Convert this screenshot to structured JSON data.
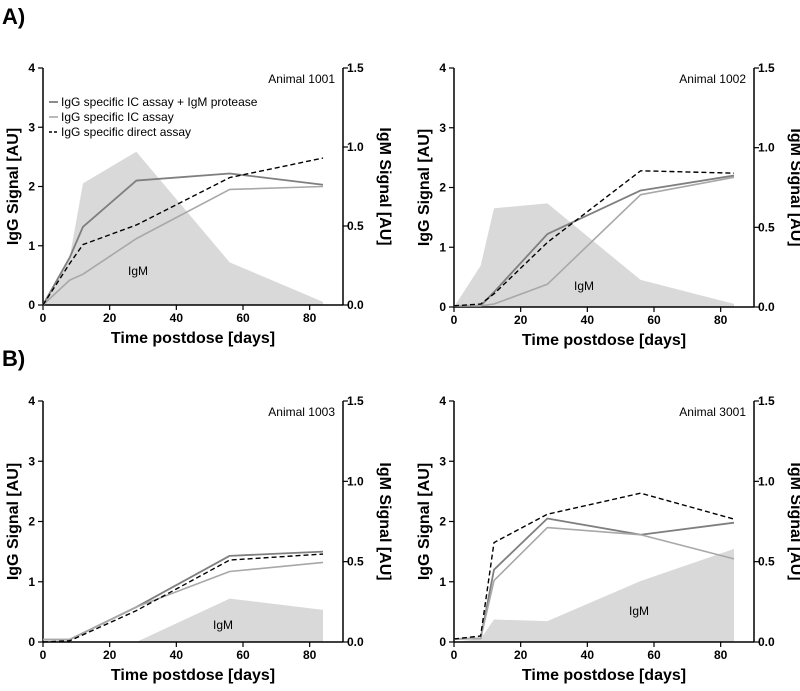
{
  "panel_labels": [
    "A)",
    "B)"
  ],
  "colors": {
    "ic_protease": "#7f7f7f",
    "ic_assay": "#a8a8a8",
    "direct": "#000000",
    "igm_fill": "#d9d9d9"
  },
  "legend": [
    {
      "label": "IgG specific IC assay + IgM protease",
      "style": "ic_protease"
    },
    {
      "label": "IgG specific IC assay",
      "style": "ic_assay"
    },
    {
      "label": "IgG specific direct assay",
      "style": "direct"
    }
  ],
  "chart_data": [
    {
      "type": "line",
      "title": "Animal 1001",
      "xlabel": "Time postdose [days]",
      "ylabel": "IgG Signal [AU]",
      "y2label": "IgM Signal [AU]",
      "xlim": [
        0,
        90
      ],
      "ylim": [
        0,
        4
      ],
      "y2lim": [
        0,
        1.5
      ],
      "xticks": [
        "0",
        "20",
        "40",
        "60",
        "80"
      ],
      "yticks": [
        "0",
        "1",
        "2",
        "3",
        "4"
      ],
      "y2ticks": [
        "0.0",
        "0.5",
        "1.0",
        "1.5"
      ],
      "igm_label": "IgM",
      "area": {
        "name": "IgM",
        "x": [
          0,
          8,
          12,
          28,
          56,
          84
        ],
        "y": [
          0.0,
          0.3,
          0.77,
          0.97,
          0.27,
          0.02
        ]
      },
      "series": [
        {
          "name": "IgG specific IC assay + IgM protease",
          "style": "ic_protease",
          "x": [
            0,
            8,
            12,
            28,
            56,
            84
          ],
          "y": [
            0.0,
            0.8,
            1.32,
            2.1,
            2.22,
            2.03
          ]
        },
        {
          "name": "IgG specific IC assay",
          "style": "ic_assay",
          "x": [
            0,
            8,
            12,
            28,
            56,
            84
          ],
          "y": [
            0.0,
            0.42,
            0.52,
            1.12,
            1.95,
            2.0
          ]
        },
        {
          "name": "IgG specific direct assay",
          "style": "direct",
          "x": [
            0,
            8,
            12,
            28,
            56,
            84
          ],
          "y": [
            0.0,
            0.7,
            1.02,
            1.35,
            2.15,
            2.48
          ]
        }
      ]
    },
    {
      "type": "line",
      "title": "Animal 1002",
      "xlabel": "Time postdose [days]",
      "ylabel": "IgG Signal [AU]",
      "y2label": "IgM Signal [AU]",
      "xlim": [
        0,
        90
      ],
      "ylim": [
        0,
        4
      ],
      "y2lim": [
        0,
        1.5
      ],
      "xticks": [
        "0",
        "20",
        "40",
        "60",
        "80"
      ],
      "yticks": [
        "0",
        "1",
        "2",
        "3",
        "4"
      ],
      "y2ticks": [
        "0.0",
        "0.5",
        "1.0",
        "1.5"
      ],
      "igm_label": "IgM",
      "area": {
        "name": "IgM",
        "x": [
          0,
          8,
          12,
          28,
          56,
          84
        ],
        "y": [
          0.0,
          0.26,
          0.62,
          0.65,
          0.17,
          0.02
        ]
      },
      "series": [
        {
          "name": "IgG specific IC assay + IgM protease",
          "style": "ic_protease",
          "x": [
            0,
            8,
            12,
            28,
            56,
            84
          ],
          "y": [
            0.02,
            0.02,
            0.25,
            1.22,
            1.95,
            2.2
          ]
        },
        {
          "name": "IgG specific IC assay",
          "style": "ic_assay",
          "x": [
            0,
            8,
            12,
            28,
            56,
            84
          ],
          "y": [
            0.02,
            0.02,
            0.05,
            0.38,
            1.88,
            2.17
          ]
        },
        {
          "name": "IgG specific direct assay",
          "style": "direct",
          "x": [
            0,
            8,
            12,
            28,
            56,
            84
          ],
          "y": [
            0.02,
            0.05,
            0.22,
            1.08,
            2.28,
            2.24
          ]
        }
      ]
    },
    {
      "type": "line",
      "title": "Animal 1003",
      "xlabel": "Time postdose [days]",
      "ylabel": "IgG Signal [AU]",
      "y2label": "IgM Signal [AU]",
      "xlim": [
        0,
        90
      ],
      "ylim": [
        0,
        4
      ],
      "y2lim": [
        0,
        1.5
      ],
      "xticks": [
        "0",
        "20",
        "40",
        "60",
        "80"
      ],
      "yticks": [
        "0",
        "1",
        "2",
        "3",
        "4"
      ],
      "y2ticks": [
        "0.0",
        "0.5",
        "1.0",
        "1.5"
      ],
      "igm_label": "IgM",
      "area": {
        "name": "IgM",
        "x": [
          0,
          28,
          56,
          84
        ],
        "y": [
          0.0,
          0.0,
          0.27,
          0.2
        ]
      },
      "series": [
        {
          "name": "IgG specific IC assay + IgM protease",
          "style": "ic_protease",
          "x": [
            0,
            8,
            28,
            56,
            84
          ],
          "y": [
            0.04,
            0.04,
            0.58,
            1.43,
            1.5
          ]
        },
        {
          "name": "IgG specific IC assay",
          "style": "ic_assay",
          "x": [
            0,
            8,
            28,
            56,
            84
          ],
          "y": [
            0.04,
            0.04,
            0.58,
            1.17,
            1.32
          ]
        },
        {
          "name": "IgG specific direct assay",
          "style": "direct",
          "x": [
            0,
            8,
            28,
            56,
            84
          ],
          "y": [
            0.0,
            0.02,
            0.52,
            1.36,
            1.46
          ]
        }
      ]
    },
    {
      "type": "line",
      "title": "Animal 3001",
      "xlabel": "Time postdose [days]",
      "ylabel": "IgG Signal [AU]",
      "y2label": "IgM Signal [AU]",
      "xlim": [
        0,
        90
      ],
      "ylim": [
        0,
        4
      ],
      "y2lim": [
        0,
        1.5
      ],
      "xticks": [
        "0",
        "20",
        "40",
        "60",
        "80"
      ],
      "yticks": [
        "0",
        "1",
        "2",
        "3",
        "4"
      ],
      "y2ticks": [
        "0.0",
        "0.5",
        "1.0",
        "1.5"
      ],
      "igm_label": "IgM",
      "area": {
        "name": "IgM",
        "x": [
          0,
          8,
          12,
          28,
          56,
          84
        ],
        "y": [
          0.0,
          0.02,
          0.14,
          0.13,
          0.38,
          0.58
        ]
      },
      "series": [
        {
          "name": "IgG specific IC assay + IgM protease",
          "style": "ic_protease",
          "x": [
            0,
            8,
            12,
            28,
            56,
            84
          ],
          "y": [
            0.05,
            0.06,
            1.2,
            2.05,
            1.78,
            1.98
          ]
        },
        {
          "name": "IgG specific IC assay",
          "style": "ic_assay",
          "x": [
            0,
            8,
            12,
            28,
            56,
            84
          ],
          "y": [
            0.05,
            0.06,
            1.02,
            1.9,
            1.78,
            1.38
          ]
        },
        {
          "name": "IgG specific direct assay",
          "style": "direct",
          "x": [
            0,
            8,
            12,
            28,
            56,
            84
          ],
          "y": [
            0.05,
            0.1,
            1.65,
            2.12,
            2.47,
            2.04
          ]
        }
      ]
    }
  ]
}
